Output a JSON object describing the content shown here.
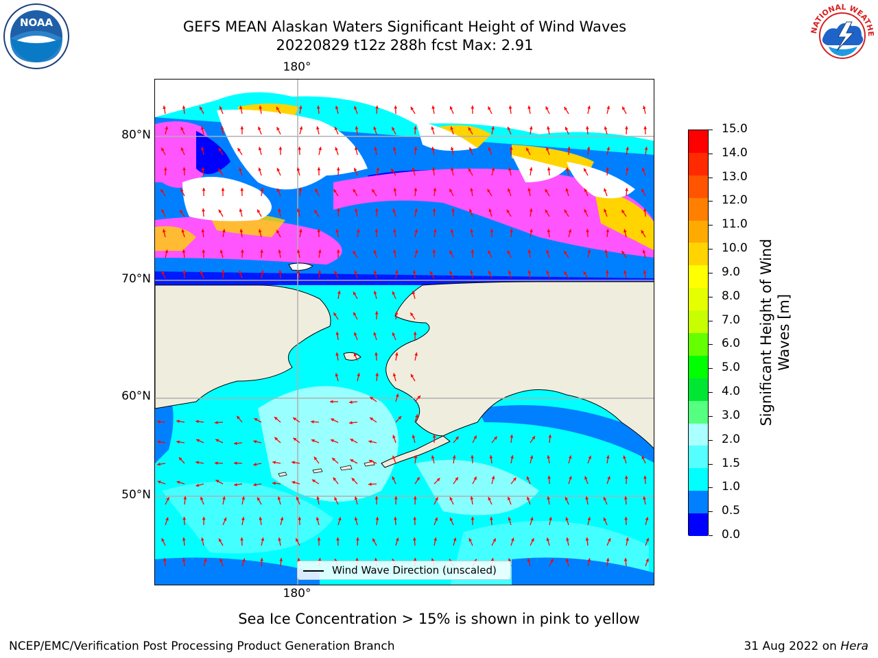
{
  "header": {
    "title_line1": "GEFS MEAN Alaskan Waters Significant Height of Wind Waves",
    "title_line2": "20220829 t12z 288h fcst   Max: 2.91"
  },
  "logos": {
    "left": {
      "name": "noaa-logo",
      "text": "NOAA"
    },
    "right": {
      "name": "nws-logo",
      "text": "NATIONAL WEATHER SERVICE"
    }
  },
  "map": {
    "lat_labels": [
      "80°N",
      "70°N",
      "60°N",
      "50°N"
    ],
    "lon_label_top": "180°",
    "lon_label_bottom": "180°",
    "legend_text": "Wind Wave Direction (unscaled)",
    "arrow_color": "#ff0000",
    "land_color": "#efedde"
  },
  "colorbar": {
    "title_line1": "Significant Height of Wind",
    "title_line2": "Waves [m]",
    "ticks": [
      "15.0",
      "14.0",
      "13.0",
      "12.0",
      "11.0",
      "10.0",
      "9.0",
      "8.0",
      "7.0",
      "6.0",
      "5.0",
      "4.0",
      "3.0",
      "2.0",
      "1.5",
      "1.0",
      "0.5",
      "0.0"
    ],
    "colors_top_to_bottom": [
      "#ff0000",
      "#ff2a00",
      "#ff5500",
      "#ff7f00",
      "#ffaa00",
      "#ffd400",
      "#ffff00",
      "#e6ff00",
      "#c8ff00",
      "#64ff00",
      "#00ff00",
      "#00e632",
      "#55ff7f",
      "#aaffff",
      "#55ffff",
      "#00ffff",
      "#0080ff",
      "#0000ff"
    ]
  },
  "caption": "Sea Ice Concentration > 15% is shown in pink to yellow",
  "footer": {
    "left": "NCEP/EMC/Verification Post Processing Product Generation Branch",
    "right_date": "31 Aug 2022 on ",
    "right_host": "Hera"
  }
}
